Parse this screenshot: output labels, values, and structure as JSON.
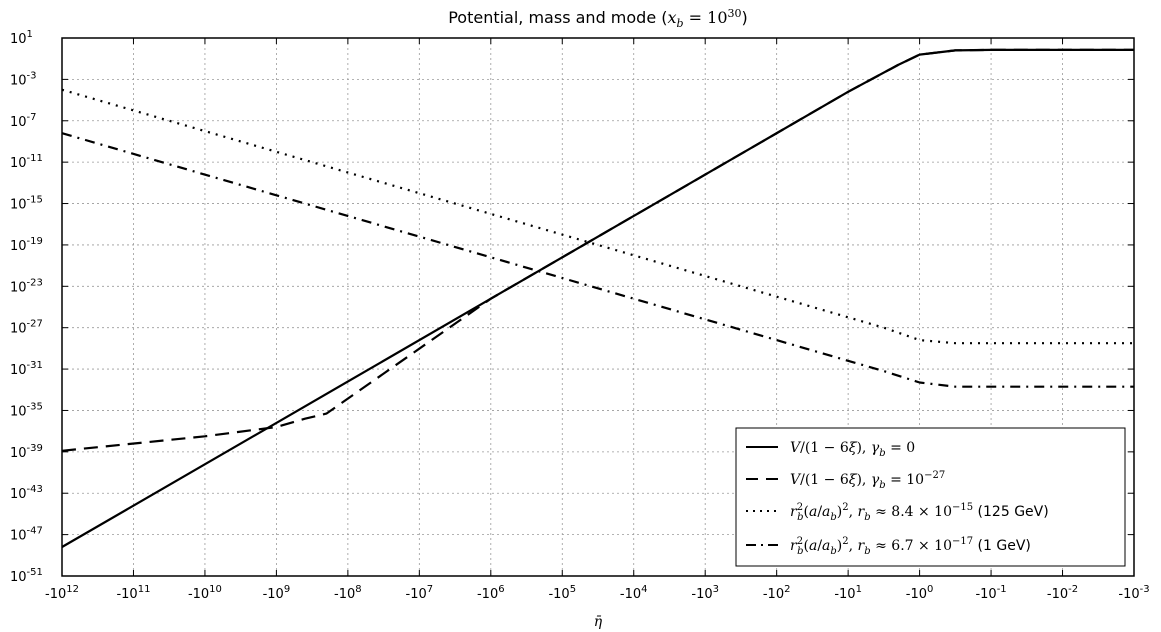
{
  "chart_data": {
    "type": "line",
    "title": "Potential, mass and mode (x_b = 10^30)",
    "xlabel": "η̄",
    "ylabel": "",
    "x_tick_exponents": [
      12,
      11,
      10,
      9,
      8,
      7,
      6,
      5,
      4,
      3,
      2,
      1,
      0,
      -1,
      -2,
      -3
    ],
    "x_tick_labels": [
      "-10^12",
      "-10^11",
      "-10^10",
      "-10^9",
      "-10^8",
      "-10^7",
      "-10^6",
      "-10^5",
      "-10^4",
      "-10^3",
      "-10^2",
      "-10^1",
      "-10^0",
      "-10^-1",
      "-10^-2",
      "-10^-3"
    ],
    "y_tick_exponents": [
      1,
      -3,
      -7,
      -11,
      -15,
      -19,
      -23,
      -27,
      -31,
      -35,
      -39,
      -43,
      -47,
      -51
    ],
    "y_tick_labels": [
      "10^1",
      "10^-3",
      "10^-7",
      "10^-11",
      "10^-15",
      "10^-19",
      "10^-23",
      "10^-27",
      "10^-31",
      "10^-35",
      "10^-39",
      "10^-43",
      "10^-47",
      "10^-51"
    ],
    "x_scale": "symlog, log of |η̄|, η̄ negative",
    "y_scale": "log",
    "xlim": [
      -1000000000000.0,
      -0.001
    ],
    "ylim": [
      1e-51,
      10.0
    ],
    "grid": true,
    "legend_position": "lower-right",
    "series": [
      {
        "name": "V/(1−6ξ), γ_b = 0",
        "style": "solid",
        "x_abs_exp": [
          12,
          9,
          6,
          3,
          1,
          0.3,
          0,
          -0.5,
          -1,
          -2,
          -3
        ],
        "y_exp": [
          -48.2,
          -36.2,
          -24.2,
          -12.2,
          -4.2,
          -1.6,
          -0.6,
          -0.2,
          -0.15,
          -0.15,
          -0.15
        ]
      },
      {
        "name": "V/(1−6ξ), γ_b = 10^−27",
        "style": "dashed",
        "x_abs_exp": [
          12,
          10,
          9,
          8.6,
          8.3,
          6,
          3,
          1,
          0.3,
          0,
          -0.5,
          -1,
          -2,
          -3
        ],
        "y_exp": [
          -38.9,
          -37.5,
          -36.6,
          -35.8,
          -35.3,
          -24.2,
          -12.2,
          -4.2,
          -1.6,
          -0.6,
          -0.2,
          -0.15,
          -0.15,
          -0.15
        ]
      },
      {
        "name": "r_b²(a/a_b)², r_b ≈ 8.4×10^−15 (125 GeV)",
        "style": "dotted",
        "x_abs_exp": [
          12,
          9,
          6,
          3,
          1,
          0.5,
          0,
          -0.5,
          -1,
          -2,
          -3
        ],
        "y_exp": [
          -4.0,
          -10.0,
          -16.0,
          -22.0,
          -26.0,
          -27.0,
          -28.2,
          -28.5,
          -28.5,
          -28.5,
          -28.5
        ]
      },
      {
        "name": "r_b²(a/a_b)², r_b ≈ 6.7×10^−17 (1 GeV)",
        "style": "dashdot",
        "x_abs_exp": [
          12,
          9,
          6,
          3,
          1,
          0.5,
          0,
          -0.5,
          -1,
          -2,
          -3
        ],
        "y_exp": [
          -8.2,
          -14.2,
          -20.2,
          -26.2,
          -30.2,
          -31.2,
          -32.3,
          -32.7,
          -32.7,
          -32.7,
          -32.7
        ]
      }
    ]
  }
}
